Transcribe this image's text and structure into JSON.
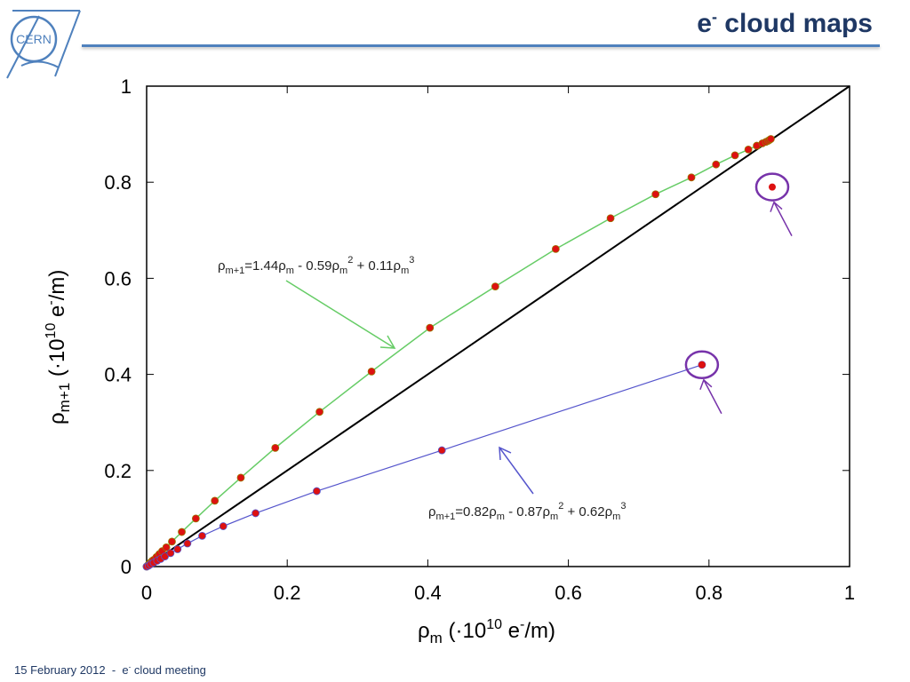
{
  "slide": {
    "title_main": "e",
    "title_sup": "-",
    "title_rest": " cloud maps",
    "footer_date": "15 February 2012",
    "footer_sep": "  -  ",
    "footer_topic_pre": "e",
    "footer_topic_sup": "-",
    "footer_topic_post": " cloud meeting",
    "logo_text": "CERN"
  },
  "colors": {
    "title": "#1f3864",
    "rule": "#4f81bd",
    "green_fit": "#66cc66",
    "blue_fit": "#5555cc",
    "points": "#dd1111",
    "diagonal": "#000000",
    "circles": "#7733aa"
  },
  "chart_data": {
    "type": "scatter",
    "xlim": [
      0,
      1
    ],
    "ylim": [
      0,
      1
    ],
    "xticks": [
      "0",
      "0.2",
      "0.4",
      "0.6",
      "0.8",
      "1"
    ],
    "yticks": [
      "0",
      "0.2",
      "0.4",
      "0.6",
      "0.8",
      "1"
    ],
    "xlabel": {
      "main": "ρ",
      "sub": "m",
      "rest": " (·10",
      "exp": "10",
      "rest2": " e",
      "sup2": "-",
      "end": "/m)"
    },
    "ylabel": {
      "main": "ρ",
      "sub": "m+1",
      "rest": " (·10",
      "exp": "10",
      "rest2": " e",
      "sup2": "-",
      "end": "/m)"
    },
    "series": [
      {
        "kind": "green",
        "coefficients": [
          1.44,
          -0.59,
          0.11
        ],
        "x": [
          0,
          0.002,
          0.004,
          0.006,
          0.008,
          0.01,
          0.014,
          0.018,
          0.022,
          0.028,
          0.036,
          0.05,
          0.07,
          0.097,
          0.134,
          0.183,
          0.246,
          0.32,
          0.403,
          0.496,
          0.582,
          0.66,
          0.724,
          0.775,
          0.81,
          0.837,
          0.856,
          0.868,
          0.876,
          0.881,
          0.884,
          0.886,
          0.888
        ],
        "y": [
          0,
          0.003,
          0.006,
          0.009,
          0.012,
          0.014,
          0.02,
          0.026,
          0.032,
          0.04,
          0.052,
          0.072,
          0.1,
          0.137,
          0.185,
          0.247,
          0.322,
          0.406,
          0.497,
          0.583,
          0.661,
          0.725,
          0.775,
          0.81,
          0.837,
          0.856,
          0.868,
          0.876,
          0.881,
          0.884,
          0.886,
          0.888,
          0.89
        ]
      },
      {
        "kind": "blue",
        "coefficients": [
          0.82,
          -0.87,
          0.62
        ],
        "x": [
          0,
          0.003,
          0.006,
          0.01,
          0.015,
          0.02,
          0.026,
          0.034,
          0.044,
          0.058,
          0.079,
          0.109,
          0.155,
          0.242,
          0.42,
          0.79
        ],
        "y": [
          0,
          0.002,
          0.005,
          0.008,
          0.012,
          0.016,
          0.021,
          0.028,
          0.036,
          0.048,
          0.064,
          0.084,
          0.111,
          0.157,
          0.242,
          0.42
        ]
      }
    ],
    "outliers": [
      {
        "x": 0.89,
        "y": 0.79
      },
      {
        "x": 0.79,
        "y": 0.42
      }
    ],
    "annotations": {
      "green": {
        "rho": "ρ",
        "lhs_sub": "m+1",
        "eq": "=1.44",
        "t1_sub": "m",
        "minus": " - 0.59",
        "t2_sub": "m",
        "t2_exp": "2",
        "plus": " + 0.11",
        "t3_sub": "m",
        "t3_exp": "3"
      },
      "blue": {
        "rho": "ρ",
        "lhs_sub": "m+1",
        "eq": "=0.82",
        "t1_sub": "m",
        "minus": " - 0.87",
        "t2_sub": "m",
        "t2_exp": "2",
        "plus": " + 0.62",
        "t3_sub": "m",
        "t3_exp": "3"
      }
    }
  }
}
